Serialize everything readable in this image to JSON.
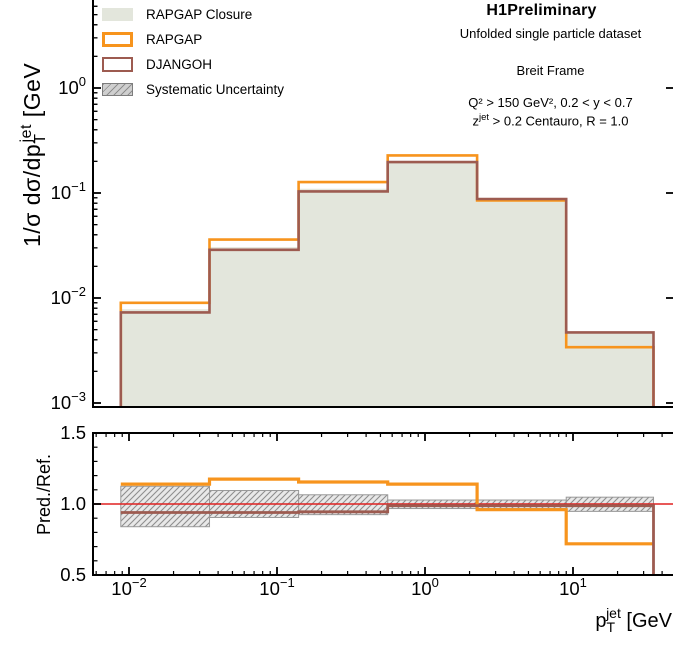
{
  "colors": {
    "closure_fill": "#e3e6dc",
    "rapgap": "#f7941d",
    "djangoh": "#9d5b50",
    "ref_line": "#e02020",
    "band_fill": "#d6d6d6",
    "band_stripe": "#8e8e8e",
    "band_edge": "#999999",
    "axis": "#000000"
  },
  "legend": {
    "items": [
      {
        "label": "RAPGAP Closure",
        "swatch": "fill"
      },
      {
        "label": "RAPGAP",
        "swatch": "outline"
      },
      {
        "label": "DJANGOH",
        "swatch": "outline"
      },
      {
        "label": "Systematic Uncertainty",
        "swatch": "hatch"
      }
    ]
  },
  "annotations": {
    "title": "H1Preliminary",
    "subtitle": "Unfolded single particle dataset",
    "frame_label": "Breit Frame",
    "cuts_line1": "Q² > 150 GeV², 0.2 < y < 0.7",
    "cuts_line2_prefix": "z",
    "cuts_line2_sup": "jet",
    "cuts_line2_rest": " > 0.2 Centauro, R = 1.0"
  },
  "axes": {
    "y_main_title_prefix": "1/σ dσ/dp",
    "y_main_title_sub": "T",
    "y_main_title_sup": "jet",
    "y_main_title_rest": " [GeV",
    "ratio_title": "Pred./Ref.",
    "x_title_prefix": "p",
    "x_title_sub": "T",
    "x_title_sup": "jet",
    "x_title_rest": " [GeV",
    "x_tick_exponents": [
      -2,
      -1,
      0,
      1
    ],
    "y_main_tick_exponents": [
      0,
      -1,
      -2,
      -3
    ],
    "ratio_ticks": [
      "1.5",
      "1.0",
      "0.5"
    ],
    "ratio_tick_values": [
      1.5,
      1.0,
      0.5
    ]
  },
  "chart_data": {
    "type": "histogram-with-ratio",
    "x_scale": "log",
    "y_scale_main": "log",
    "title": "H1Preliminary — Unfolded single particle dataset",
    "xlabel": "pT^jet [GeV",
    "ylabel_main": "1/σ dσ/dpT^jet [GeV",
    "ylabel_ratio": "Pred./Ref.",
    "bin_edges_gev": [
      0.0088,
      0.035,
      0.14,
      0.56,
      2.25,
      9.0,
      35
    ],
    "series": [
      {
        "name": "RAPGAP Closure",
        "style": "filled_histogram",
        "values": [
          0.0078,
          0.0305,
          0.11,
          0.199,
          0.0885,
          0.00475
        ]
      },
      {
        "name": "RAPGAP",
        "style": "step_histogram",
        "values": [
          0.009,
          0.036,
          0.127,
          0.228,
          0.085,
          0.0034
        ]
      },
      {
        "name": "DJANGOH",
        "style": "step_histogram",
        "values": [
          0.0073,
          0.0288,
          0.1035,
          0.197,
          0.0877,
          0.0047
        ]
      }
    ],
    "ratio": {
      "reference": "RAPGAP Closure",
      "ylim": [
        0.5,
        1.5
      ],
      "rapgap": [
        1.14,
        1.175,
        1.155,
        1.14,
        0.96,
        0.72
      ],
      "djangoh": [
        0.94,
        0.94,
        0.945,
        0.988,
        0.988,
        0.988
      ],
      "systematic_band": [
        [
          0.84,
          1.125
        ],
        [
          0.905,
          1.095
        ],
        [
          0.925,
          1.065
        ],
        [
          0.968,
          1.028
        ],
        [
          0.968,
          1.028
        ],
        [
          0.948,
          1.048
        ]
      ]
    }
  }
}
